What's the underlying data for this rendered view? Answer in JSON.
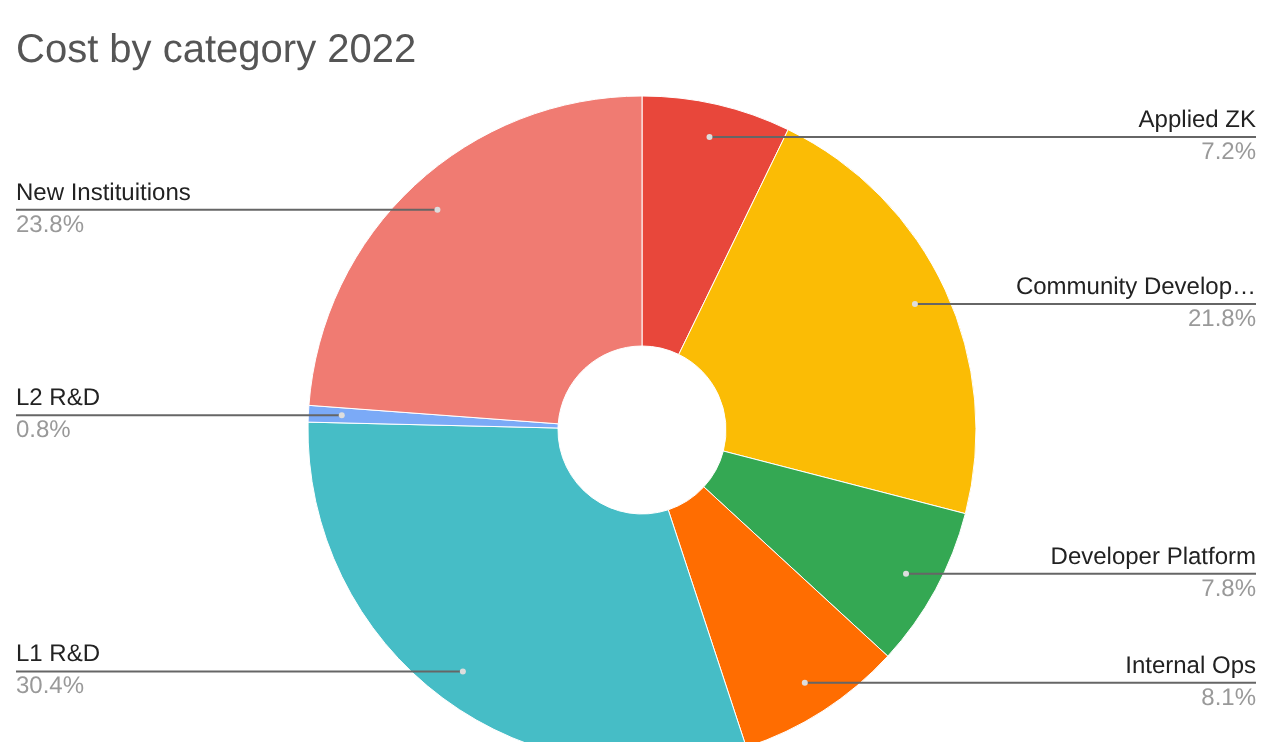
{
  "chart_data": {
    "type": "donut",
    "title": "Cost by category 2022",
    "categories": [
      "Applied ZK",
      "Community Develop…",
      "Developer Platform",
      "Internal Ops",
      "L1 R&D",
      "L2 R&D",
      "New Instituitions"
    ],
    "values": [
      7.2,
      21.8,
      7.8,
      8.1,
      30.4,
      0.8,
      23.8
    ],
    "colors": [
      "#e8473b",
      "#fbbc05",
      "#34a853",
      "#ff6d01",
      "#46bdc6",
      "#7baaf7",
      "#f07b72"
    ],
    "value_labels": [
      "7.2%",
      "21.8%",
      "7.8%",
      "8.1%",
      "30.4%",
      "0.8%",
      "23.8%"
    ]
  }
}
